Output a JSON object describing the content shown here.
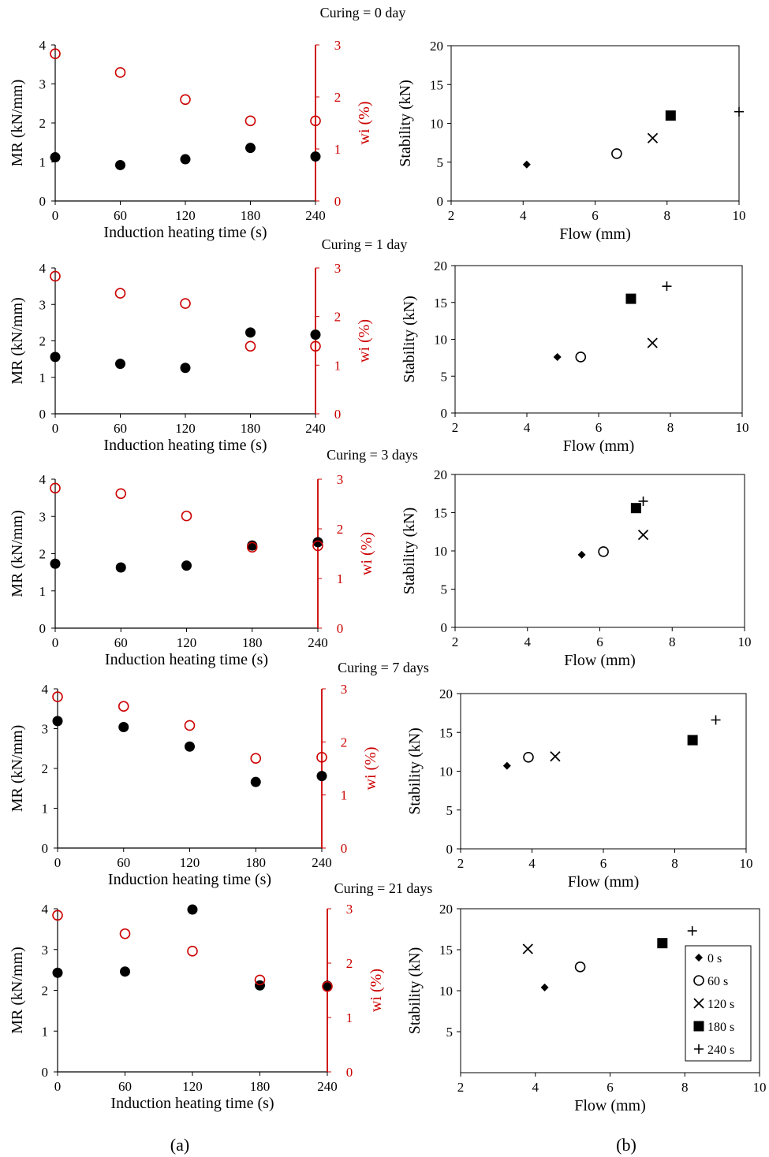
{
  "figure": {
    "label_a": "(a)",
    "label_b": "(b)",
    "colors": {
      "mr": "#000000",
      "wi": "#cc0000"
    }
  },
  "chart_data": [
    {
      "type": "scatter",
      "panel": "a",
      "curing_label": "Curing = 0 day",
      "xlabel": "Induction heating time (s)",
      "ylabel": "MR (kN/mm)",
      "y2label": "wi (%)",
      "xticks": [
        0,
        60,
        120,
        180,
        240
      ],
      "xlim": [
        0,
        240
      ],
      "ylim": [
        0,
        4
      ],
      "yticks": [
        0,
        1,
        2,
        3,
        4
      ],
      "y2lim": [
        0,
        3
      ],
      "y2ticks": [
        0,
        1,
        2,
        3
      ],
      "series": [
        {
          "axis": "left",
          "marker": "filled-circle",
          "x": [
            0,
            60,
            120,
            180,
            240
          ],
          "y": [
            1.12,
            0.92,
            1.07,
            1.36,
            1.14
          ]
        },
        {
          "axis": "right",
          "marker": "open-circle",
          "x": [
            0,
            60,
            120,
            180,
            240
          ],
          "y": [
            2.83,
            2.47,
            1.95,
            1.54,
            1.54
          ]
        }
      ]
    },
    {
      "type": "scatter",
      "panel": "b",
      "curing_label": "",
      "xlabel": "Flow (mm)",
      "ylabel": "Stability (kN)",
      "xlim": [
        2,
        10
      ],
      "xticks": [
        2,
        4,
        6,
        8,
        10
      ],
      "ylim": [
        0,
        20
      ],
      "yticks": [
        0,
        5,
        10,
        15,
        20
      ],
      "series": [
        {
          "marker": "diamond",
          "x": [
            4.1
          ],
          "y": [
            4.7
          ]
        },
        {
          "marker": "open-circle",
          "x": [
            6.6
          ],
          "y": [
            6.1
          ]
        },
        {
          "marker": "x",
          "x": [
            7.6
          ],
          "y": [
            8.1
          ]
        },
        {
          "marker": "square",
          "x": [
            8.1
          ],
          "y": [
            11.0
          ]
        },
        {
          "marker": "plus",
          "x": [
            10.0
          ],
          "y": [
            11.5
          ]
        }
      ]
    },
    {
      "type": "scatter",
      "panel": "a",
      "curing_label": "Curing = 1 day",
      "xlabel": "Induction heating time (s)",
      "ylabel": "MR (kN/mm)",
      "y2label": "wi (%)",
      "xticks": [
        0,
        60,
        120,
        180,
        240
      ],
      "xlim": [
        0,
        240
      ],
      "ylim": [
        0,
        4
      ],
      "yticks": [
        0,
        1,
        2,
        3,
        4
      ],
      "y2lim": [
        0,
        3
      ],
      "y2ticks": [
        0,
        1,
        2,
        3
      ],
      "series": [
        {
          "axis": "left",
          "marker": "filled-circle",
          "x": [
            0,
            60,
            120,
            180,
            240
          ],
          "y": [
            1.56,
            1.37,
            1.26,
            2.23,
            2.17
          ]
        },
        {
          "axis": "right",
          "marker": "open-circle",
          "x": [
            0,
            60,
            120,
            180,
            240
          ],
          "y": [
            2.83,
            2.48,
            2.27,
            1.39,
            1.39
          ]
        }
      ]
    },
    {
      "type": "scatter",
      "panel": "b",
      "curing_label": "",
      "xlabel": "Flow (mm)",
      "ylabel": "Stability (kN)",
      "xlim": [
        2,
        10
      ],
      "xticks": [
        2,
        4,
        6,
        8,
        10
      ],
      "ylim": [
        0,
        20
      ],
      "yticks": [
        0,
        5,
        10,
        15,
        20
      ],
      "series": [
        {
          "marker": "diamond",
          "x": [
            4.85
          ],
          "y": [
            7.6
          ]
        },
        {
          "marker": "open-circle",
          "x": [
            5.5
          ],
          "y": [
            7.6
          ]
        },
        {
          "marker": "x",
          "x": [
            7.5
          ],
          "y": [
            9.5
          ]
        },
        {
          "marker": "square",
          "x": [
            6.9
          ],
          "y": [
            15.5
          ]
        },
        {
          "marker": "plus",
          "x": [
            7.9
          ],
          "y": [
            17.2
          ]
        }
      ]
    },
    {
      "type": "scatter",
      "panel": "a",
      "curing_label": "Curing = 3 days",
      "xlabel": "Induction heating time (s)",
      "ylabel": "MR (kN/mm)",
      "y2label": "wi (%)",
      "xticks": [
        0,
        60,
        120,
        180,
        240
      ],
      "xlim": [
        0,
        240
      ],
      "ylim": [
        0,
        4
      ],
      "yticks": [
        0,
        1,
        2,
        3,
        4
      ],
      "y2lim": [
        0,
        3
      ],
      "y2ticks": [
        0,
        1,
        2,
        3
      ],
      "series": [
        {
          "axis": "left",
          "marker": "filled-circle",
          "x": [
            0,
            60,
            120,
            180,
            240
          ],
          "y": [
            1.73,
            1.63,
            1.68,
            2.22,
            2.31
          ]
        },
        {
          "axis": "right",
          "marker": "open-circle",
          "x": [
            0,
            60,
            120,
            180,
            240
          ],
          "y": [
            2.82,
            2.71,
            2.26,
            1.63,
            1.66
          ]
        }
      ]
    },
    {
      "type": "scatter",
      "panel": "b",
      "curing_label": "",
      "xlabel": "Flow (mm)",
      "ylabel": "Stability (kN)",
      "xlim": [
        2,
        10
      ],
      "xticks": [
        2,
        4,
        6,
        8,
        10
      ],
      "ylim": [
        0,
        20
      ],
      "yticks": [
        0,
        5,
        10,
        15,
        20
      ],
      "series": [
        {
          "marker": "diamond",
          "x": [
            5.5
          ],
          "y": [
            9.5
          ]
        },
        {
          "marker": "open-circle",
          "x": [
            6.1
          ],
          "y": [
            9.9
          ]
        },
        {
          "marker": "x",
          "x": [
            7.2
          ],
          "y": [
            12.1
          ]
        },
        {
          "marker": "square",
          "x": [
            7.0
          ],
          "y": [
            15.6
          ]
        },
        {
          "marker": "plus",
          "x": [
            7.2
          ],
          "y": [
            16.5
          ]
        }
      ]
    },
    {
      "type": "scatter",
      "panel": "a",
      "curing_label": "Curing = 7 days",
      "xlabel": "Induction heating time (s)",
      "ylabel": "MR (kN/mm)",
      "y2label": "wi (%)",
      "xticks": [
        0,
        60,
        120,
        180,
        240
      ],
      "xlim": [
        0,
        240
      ],
      "ylim": [
        0,
        4
      ],
      "yticks": [
        0,
        1,
        2,
        3,
        4
      ],
      "y2lim": [
        0,
        3
      ],
      "y2ticks": [
        0,
        1,
        2,
        3
      ],
      "series": [
        {
          "axis": "left",
          "marker": "filled-circle",
          "x": [
            0,
            60,
            120,
            180,
            240
          ],
          "y": [
            3.19,
            3.04,
            2.55,
            1.66,
            1.81
          ]
        },
        {
          "axis": "right",
          "marker": "open-circle",
          "x": [
            0,
            60,
            120,
            180,
            240
          ],
          "y": [
            2.85,
            2.67,
            2.31,
            1.69,
            1.71
          ]
        }
      ]
    },
    {
      "type": "scatter",
      "panel": "b",
      "curing_label": "",
      "xlabel": "Flow (mm)",
      "ylabel": "Stability (kN)",
      "xlim": [
        2,
        10
      ],
      "xticks": [
        2,
        4,
        6,
        8,
        10
      ],
      "ylim": [
        0,
        20
      ],
      "yticks": [
        0,
        5,
        10,
        15,
        20
      ],
      "series": [
        {
          "marker": "diamond",
          "x": [
            3.3
          ],
          "y": [
            10.7
          ]
        },
        {
          "marker": "open-circle",
          "x": [
            3.9
          ],
          "y": [
            11.8
          ]
        },
        {
          "marker": "x",
          "x": [
            4.65
          ],
          "y": [
            11.9
          ]
        },
        {
          "marker": "square",
          "x": [
            8.5
          ],
          "y": [
            14.0
          ]
        },
        {
          "marker": "plus",
          "x": [
            9.15
          ],
          "y": [
            16.6
          ]
        }
      ]
    },
    {
      "type": "scatter",
      "panel": "a",
      "curing_label": "Curing = 21 days",
      "xlabel": "Induction heating time (s)",
      "ylabel": "MR (kN/mm)",
      "y2label": "wi (%)",
      "xticks": [
        0,
        60,
        120,
        180,
        240
      ],
      "xlim": [
        0,
        240
      ],
      "ylim": [
        0,
        4
      ],
      "yticks": [
        0,
        1,
        2,
        3,
        4
      ],
      "y2lim": [
        0,
        3
      ],
      "y2ticks": [
        0,
        1,
        2,
        3
      ],
      "series": [
        {
          "axis": "left",
          "marker": "filled-circle",
          "x": [
            0,
            60,
            120,
            180,
            240
          ],
          "y": [
            2.43,
            2.46,
            3.98,
            2.12,
            2.11
          ]
        },
        {
          "axis": "right",
          "marker": "open-circle",
          "x": [
            0,
            60,
            120,
            180,
            240
          ],
          "y": [
            2.88,
            2.54,
            2.22,
            1.69,
            1.57
          ]
        }
      ]
    },
    {
      "type": "scatter",
      "panel": "b",
      "curing_label": "",
      "xlabel": "Flow (mm)",
      "ylabel": "Stability (kN)",
      "xlim": [
        2,
        10
      ],
      "xticks": [
        2,
        4,
        6,
        8,
        10
      ],
      "ylim": [
        0,
        20
      ],
      "yticks": [
        5,
        10,
        15,
        20
      ],
      "legend": {
        "placement": "right",
        "entries": [
          "0 s",
          "60 s",
          "120 s",
          "180 s",
          "240 s"
        ]
      },
      "series": [
        {
          "marker": "diamond",
          "x": [
            4.25
          ],
          "y": [
            10.4
          ]
        },
        {
          "marker": "open-circle",
          "x": [
            5.2
          ],
          "y": [
            12.9
          ]
        },
        {
          "marker": "x",
          "x": [
            3.8
          ],
          "y": [
            15.1
          ]
        },
        {
          "marker": "square",
          "x": [
            7.4
          ],
          "y": [
            15.8
          ]
        },
        {
          "marker": "plus",
          "x": [
            8.2
          ],
          "y": [
            17.3
          ]
        }
      ]
    }
  ]
}
